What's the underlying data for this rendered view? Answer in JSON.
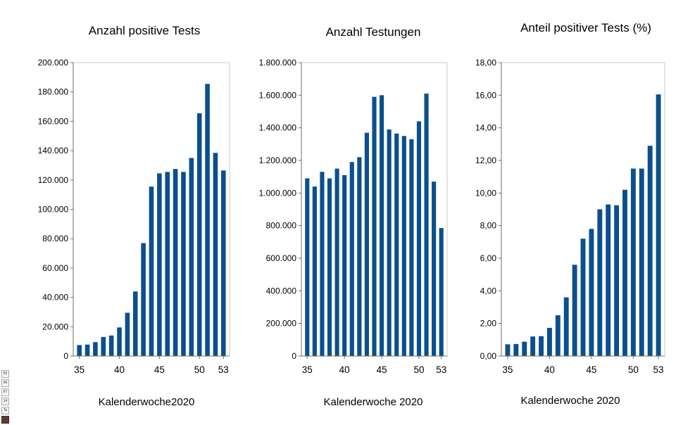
{
  "chart_data": [
    {
      "type": "bar",
      "title": "Anzahl positive Tests",
      "xlabel": "Kalenderwoche2020",
      "ylabel": "",
      "categories": [
        35,
        36,
        37,
        38,
        39,
        40,
        41,
        42,
        43,
        44,
        45,
        46,
        47,
        48,
        49,
        50,
        51,
        52,
        53
      ],
      "values": [
        7500,
        7800,
        9500,
        13000,
        14000,
        19500,
        29500,
        44000,
        77000,
        115500,
        124500,
        125500,
        127500,
        125500,
        135000,
        165500,
        185500,
        138500,
        126500
      ],
      "ylim": [
        0,
        200000
      ],
      "yticks": [
        0,
        20000,
        40000,
        60000,
        80000,
        100000,
        120000,
        140000,
        160000,
        180000,
        200000
      ],
      "ytick_labels": [
        "0",
        "20.000",
        "40.000",
        "60.000",
        "80.000",
        "100.000",
        "120.000",
        "140.000",
        "160.000",
        "180.000",
        "200.000"
      ],
      "xtick_labels": [
        "35",
        "40",
        "45",
        "50",
        "53"
      ],
      "grid": false
    },
    {
      "type": "bar",
      "title": "Anzahl Testungen",
      "xlabel": "Kalenderwoche 2020",
      "ylabel": "",
      "categories": [
        35,
        36,
        37,
        38,
        39,
        40,
        41,
        42,
        43,
        44,
        45,
        46,
        47,
        48,
        49,
        50,
        51,
        52,
        53
      ],
      "values": [
        1090000,
        1040000,
        1130000,
        1090000,
        1150000,
        1110000,
        1190000,
        1220000,
        1370000,
        1590000,
        1600000,
        1390000,
        1365000,
        1350000,
        1330000,
        1440000,
        1610000,
        1070000,
        785000
      ],
      "ylim": [
        0,
        1800000
      ],
      "yticks": [
        0,
        200000,
        400000,
        600000,
        800000,
        1000000,
        1200000,
        1400000,
        1600000,
        1800000
      ],
      "ytick_labels": [
        "0",
        "200.000",
        "400.000",
        "600.000",
        "800.000",
        "1.000.000",
        "1.200.000",
        "1.400.000",
        "1.600.000",
        "1.800.000"
      ],
      "xtick_labels": [
        "35",
        "40",
        "45",
        "50",
        "53"
      ],
      "grid": false
    },
    {
      "type": "bar",
      "title": "Anteil positiver Tests (%)",
      "xlabel": "Kalenderwoche 2020",
      "ylabel": "",
      "categories": [
        35,
        36,
        37,
        38,
        39,
        40,
        41,
        42,
        43,
        44,
        45,
        46,
        47,
        48,
        49,
        50,
        51,
        52,
        53
      ],
      "values": [
        0.72,
        0.74,
        0.88,
        1.2,
        1.22,
        1.73,
        2.5,
        3.6,
        5.6,
        7.2,
        7.8,
        9.0,
        9.3,
        9.25,
        10.2,
        11.5,
        11.5,
        12.9,
        16.05
      ],
      "ylim": [
        0,
        18
      ],
      "yticks": [
        0,
        2,
        4,
        6,
        8,
        10,
        12,
        14,
        16,
        18
      ],
      "ytick_labels": [
        "0,00",
        "2,00",
        "4,00",
        "6,00",
        "8,00",
        "10,00",
        "12,00",
        "14,00",
        "16,00",
        "18,00"
      ],
      "xtick_labels": [
        "35",
        "40",
        "45",
        "50",
        "53"
      ],
      "grid": false
    }
  ],
  "colors": {
    "bar": "#0b4f8d",
    "axis": "#6f6f6f",
    "grid": "#c8c8c8"
  },
  "side_thumbs": [
    "65",
    "66",
    "67",
    "14",
    "Ta",
    ""
  ]
}
